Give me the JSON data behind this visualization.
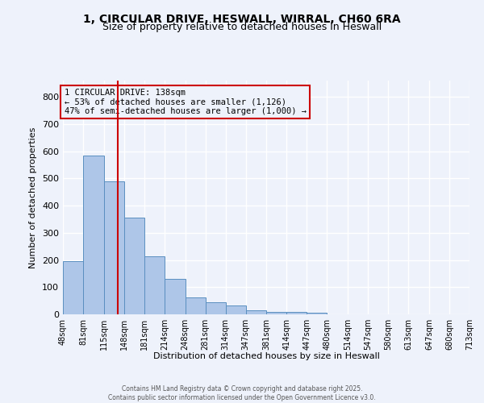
{
  "title_line1": "1, CIRCULAR DRIVE, HESWALL, WIRRAL, CH60 6RA",
  "title_line2": "Size of property relative to detached houses in Heswall",
  "xlabel": "Distribution of detached houses by size in Heswall",
  "ylabel": "Number of detached properties",
  "bar_color": "#aec6e8",
  "bar_edge_color": "#5a8fc0",
  "background_color": "#eef2fb",
  "grid_color": "#ffffff",
  "annotation_text": "1 CIRCULAR DRIVE: 138sqm\n← 53% of detached houses are smaller (1,126)\n47% of semi-detached houses are larger (1,000) →",
  "vline_x": 138,
  "vline_color": "#cc0000",
  "bin_edges": [
    48,
    81,
    115,
    148,
    181,
    214,
    248,
    281,
    314,
    347,
    381,
    414,
    447,
    480,
    514,
    547,
    580,
    613,
    647,
    680,
    713
  ],
  "bar_heights": [
    195,
    585,
    490,
    355,
    215,
    130,
    62,
    45,
    32,
    15,
    10,
    10,
    7,
    0,
    0,
    0,
    0,
    0,
    0,
    0
  ],
  "ylim": [
    0,
    860
  ],
  "yticks": [
    0,
    100,
    200,
    300,
    400,
    500,
    600,
    700,
    800
  ],
  "footer_line1": "Contains HM Land Registry data © Crown copyright and database right 2025.",
  "footer_line2": "Contains public sector information licensed under the Open Government Licence v3.0."
}
